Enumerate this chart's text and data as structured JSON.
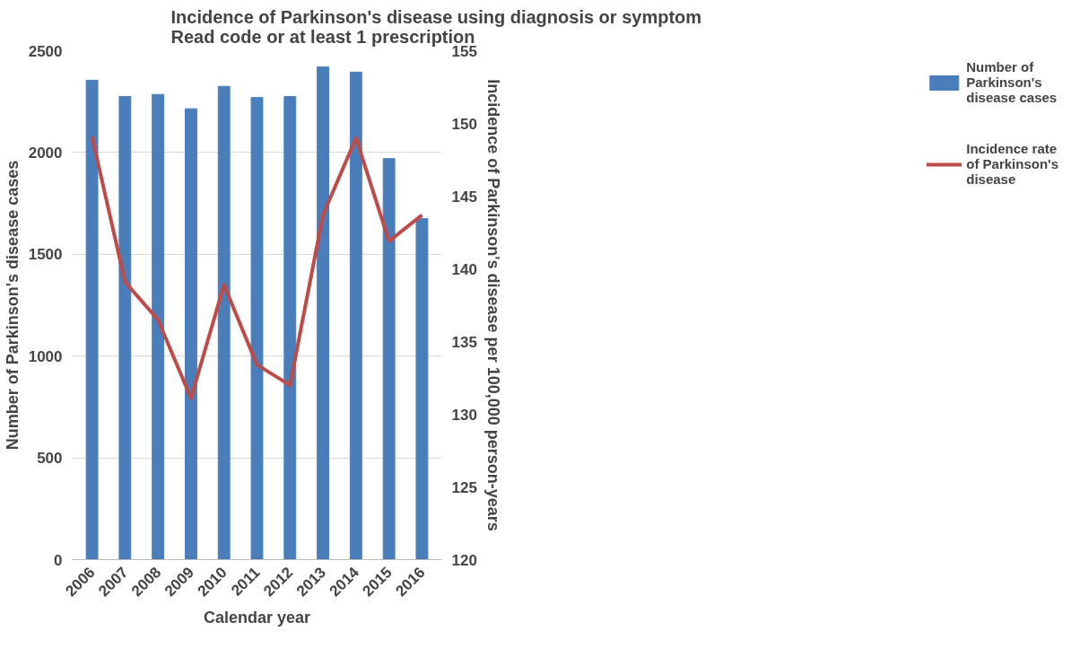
{
  "chart_data": {
    "type": "bar",
    "title": "Incidence of Parkinson's disease using diagnosis or symptom Read code or at least 1 prescription",
    "xlabel": "Calendar year",
    "ylabel": "Number of Parkinson's disease cases",
    "y2label": "Incidence of Parkinson's disease per 100,000 person-years",
    "categories": [
      "2006",
      "2007",
      "2008",
      "2009",
      "2010",
      "2011",
      "2012",
      "2013",
      "2014",
      "2015",
      "2016"
    ],
    "series": [
      {
        "name": "Number of Parkinson's disease cases",
        "color": "#4a7ebb",
        "values": [
          2355,
          2275,
          2285,
          2215,
          2325,
          2270,
          2275,
          2420,
          2395,
          1970,
          1675
        ]
      },
      {
        "name": "Incidence rate of Parkinson's disease",
        "color": "#be4b48",
        "type": "line",
        "axis": "y2",
        "values": [
          149.1,
          139.1,
          136.5,
          131.1,
          138.9,
          133.4,
          132.0,
          143.7,
          149.0,
          141.9,
          143.7
        ]
      }
    ],
    "ylim": [
      0,
      2500
    ],
    "yticks": [
      0,
      500,
      1000,
      1500,
      2000,
      2500
    ],
    "y2lim": [
      120,
      155
    ],
    "y2ticks": [
      120,
      125,
      130,
      135,
      140,
      145,
      150,
      155
    ],
    "grid": "y",
    "legend": "right"
  }
}
